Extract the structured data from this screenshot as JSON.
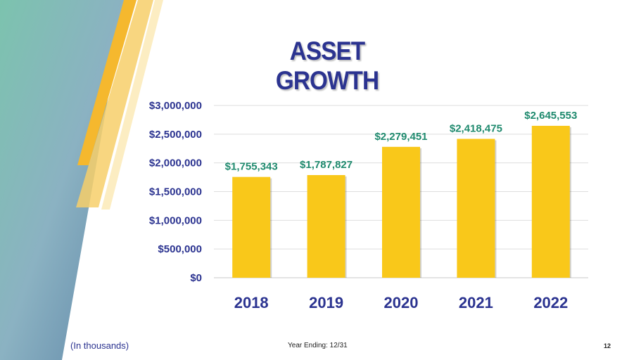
{
  "slide": {
    "title": "ASSET GROWTH",
    "footnote": "(In thousands)",
    "footer_center": "Year Ending: 12/31",
    "page_number": "12"
  },
  "colors": {
    "title": "#2b3390",
    "bar": "#f9c81a",
    "data_label": "#1f8a6e",
    "axis_text": "#2b3390",
    "accent_teal": "#7fbfae",
    "accent_gold": "#f5b82e"
  },
  "chart_data": {
    "type": "bar",
    "title": "ASSET GROWTH",
    "xlabel": "",
    "ylabel": "",
    "categories": [
      "2018",
      "2019",
      "2020",
      "2021",
      "2022"
    ],
    "values": [
      1755343,
      1787827,
      2279451,
      2418475,
      2645553
    ],
    "data_labels": [
      "$1,755,343",
      "$1,787,827",
      "$2,279,451",
      "$2,418,475",
      "$2,645,553"
    ],
    "ylim": [
      0,
      3000000
    ],
    "yticks": [
      0,
      500000,
      1000000,
      1500000,
      2000000,
      2500000,
      3000000
    ],
    "ytick_labels": [
      "$0",
      "$500,000",
      "$1,000,000",
      "$1,500,000",
      "$2,000,000",
      "$2,500,000",
      "$3,000,000"
    ],
    "grid": true,
    "legend": "none"
  }
}
